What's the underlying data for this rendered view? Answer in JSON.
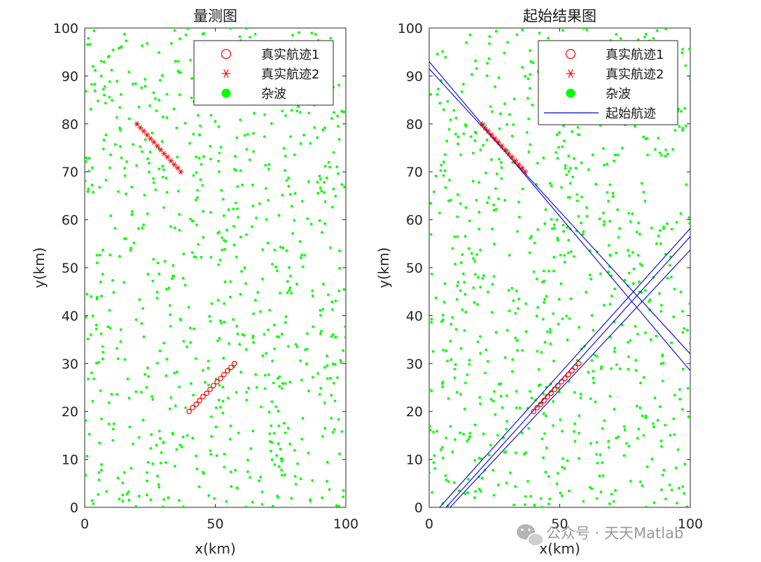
{
  "watermark": "公众号 · 天天Matlab",
  "chart_data": [
    {
      "type": "scatter",
      "title": "量测图",
      "xlabel": "x(km)",
      "ylabel": "y(km)",
      "xlim": [
        0,
        100
      ],
      "ylim": [
        0,
        100
      ],
      "xticks": [
        "0",
        "50",
        "100"
      ],
      "yticks": [
        "0",
        "10",
        "20",
        "30",
        "40",
        "50",
        "60",
        "70",
        "80",
        "90",
        "100"
      ],
      "grid": false,
      "legend_position": "top-right",
      "series": [
        {
          "name": "真实航迹1",
          "marker": "circle-open",
          "color": "#ff0000",
          "x": [
            40.0,
            41.3,
            42.7,
            44.0,
            45.3,
            46.7,
            48.0,
            49.3,
            50.7,
            52.0,
            53.3,
            54.7,
            56.0,
            57.3
          ],
          "y": [
            20.0,
            20.8,
            21.5,
            22.3,
            23.1,
            23.8,
            24.6,
            25.4,
            26.2,
            26.9,
            27.7,
            28.5,
            29.2,
            30.0
          ]
        },
        {
          "name": "真实航迹2",
          "marker": "asterisk",
          "color": "#ff0000",
          "x": [
            20.0,
            21.3,
            22.6,
            23.9,
            25.2,
            26.5,
            27.8,
            29.1,
            30.4,
            31.7,
            33.0,
            34.3,
            35.6,
            36.8
          ],
          "y": [
            80.0,
            79.2,
            78.5,
            77.7,
            76.9,
            76.2,
            75.4,
            74.6,
            73.8,
            73.1,
            72.3,
            71.5,
            70.8,
            70.0
          ]
        },
        {
          "name": "杂波",
          "marker": "dot",
          "color": "#00ff00",
          "count": 800
        }
      ]
    },
    {
      "type": "scatter",
      "title": "起始结果图",
      "xlabel": "x(km)",
      "ylabel": "y(km)",
      "xlim": [
        0,
        100
      ],
      "ylim": [
        0,
        100
      ],
      "xticks": [
        "0",
        "50",
        "100"
      ],
      "yticks": [
        "0",
        "10",
        "20",
        "30",
        "40",
        "50",
        "60",
        "70",
        "80",
        "90",
        "100"
      ],
      "grid": false,
      "legend_position": "top-right",
      "series": [
        {
          "name": "真实航迹1",
          "marker": "circle-open",
          "color": "#ff0000",
          "same_as_plot": 0
        },
        {
          "name": "真实航迹2",
          "marker": "asterisk",
          "color": "#ff0000",
          "same_as_plot": 0
        },
        {
          "name": "杂波",
          "marker": "dot",
          "color": "#00ff00",
          "count": 800
        },
        {
          "name": "起始航迹",
          "marker": "line",
          "color": "#0000dd",
          "lines": [
            {
              "x": [
                0,
                100
              ],
              "y": [
                93.0,
                28.5
              ]
            },
            {
              "x": [
                0,
                100
              ],
              "y": [
                91.5,
                32.0
              ]
            },
            {
              "x": [
                4.0,
                100
              ],
              "y": [
                0,
                58.2
              ]
            },
            {
              "x": [
                6.5,
                100
              ],
              "y": [
                0,
                56.5
              ]
            },
            {
              "x": [
                8.0,
                100
              ],
              "y": [
                0,
                53.7
              ]
            }
          ]
        }
      ]
    }
  ]
}
